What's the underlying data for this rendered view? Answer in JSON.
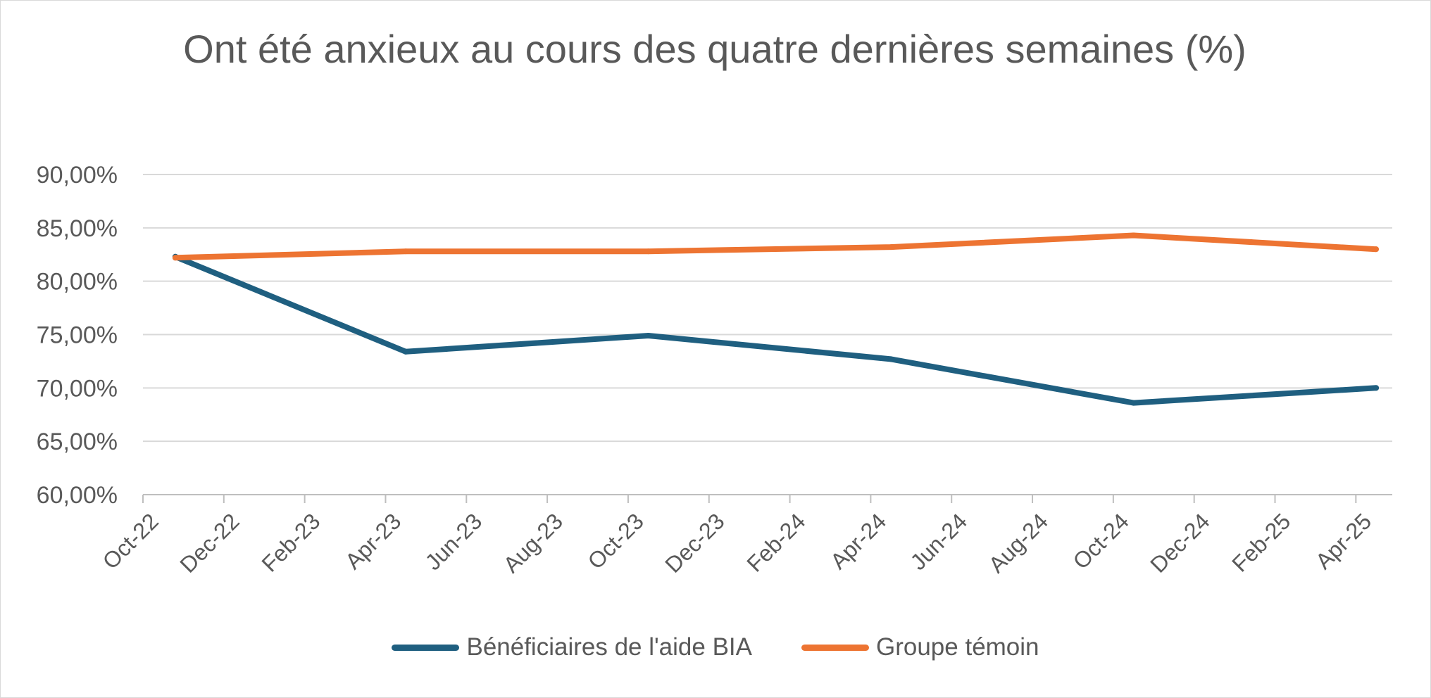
{
  "chart_data": {
    "type": "line",
    "title": "Ont été anxieux au cours des quatre dernières semaines (%)",
    "xlabel": "",
    "ylabel": "",
    "ylim": [
      60,
      90
    ],
    "ytick_labels": [
      "90,00%",
      "85,00%",
      "80,00%",
      "75,00%",
      "70,00%",
      "65,00%",
      "60,00%"
    ],
    "ytick_values": [
      90,
      85,
      80,
      75,
      70,
      65,
      60
    ],
    "x_tick_labels": [
      "Oct-22",
      "Dec-22",
      "Feb-23",
      "Apr-23",
      "Jun-23",
      "Aug-23",
      "Oct-23",
      "Dec-23",
      "Feb-24",
      "Apr-24",
      "Jun-24",
      "Aug-24",
      "Oct-24",
      "Dec-24",
      "Feb-25",
      "Apr-25"
    ],
    "x_tick_months": [
      0,
      2,
      4,
      6,
      8,
      10,
      12,
      14,
      16,
      18,
      20,
      22,
      24,
      26,
      28,
      30
    ],
    "grid": true,
    "legend_position": "bottom",
    "series": [
      {
        "name": "Bénéficiaires de l'aide BIA",
        "color": "#1f5f80",
        "months": [
          0.8,
          6.5,
          12.5,
          18.5,
          24.5,
          30.5
        ],
        "values": [
          82.3,
          73.4,
          74.9,
          72.7,
          68.6,
          70.0
        ]
      },
      {
        "name": "Groupe témoin",
        "color": "#ed7432",
        "months": [
          0.8,
          6.5,
          12.5,
          18.5,
          24.5,
          30.5
        ],
        "values": [
          82.2,
          82.8,
          82.8,
          83.2,
          84.3,
          83.0
        ]
      }
    ]
  }
}
